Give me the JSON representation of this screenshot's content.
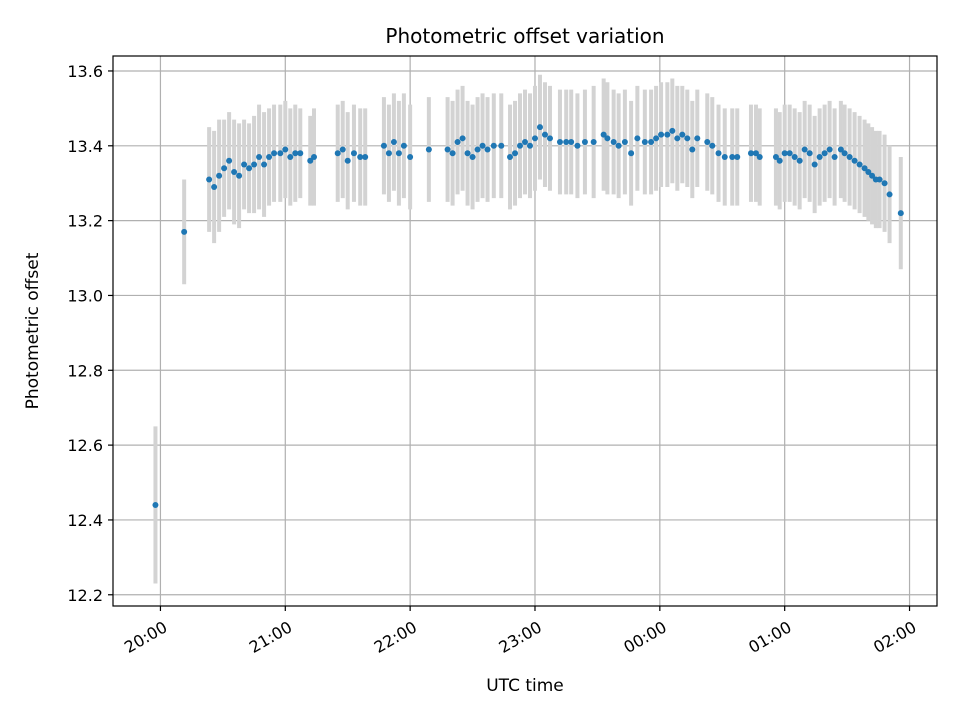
{
  "chart_data": {
    "type": "scatter",
    "title": "Photometric offset variation",
    "xlabel": "UTC time",
    "ylabel": "Photometric offset",
    "x_unit": "hours since 20:00 UTC",
    "xlim": [
      -0.38,
      6.22
    ],
    "ylim": [
      12.17,
      13.64
    ],
    "xticks": [
      {
        "x": 0,
        "label": "20:00"
      },
      {
        "x": 1,
        "label": "21:00"
      },
      {
        "x": 2,
        "label": "22:00"
      },
      {
        "x": 3,
        "label": "23:00"
      },
      {
        "x": 4,
        "label": "00:00"
      },
      {
        "x": 5,
        "label": "01:00"
      },
      {
        "x": 6,
        "label": "02:00"
      }
    ],
    "yticks": [
      {
        "y": 12.2,
        "label": "12.2"
      },
      {
        "y": 12.4,
        "label": "12.4"
      },
      {
        "y": 12.6,
        "label": "12.6"
      },
      {
        "y": 12.8,
        "label": "12.8"
      },
      {
        "y": 13.0,
        "label": "13.0"
      },
      {
        "y": 13.2,
        "label": "13.2"
      },
      {
        "y": 13.4,
        "label": "13.4"
      },
      {
        "y": 13.6,
        "label": "13.6"
      }
    ],
    "grid": true,
    "colors": {
      "marker": "#1f77b4",
      "errorbar": "#d3d3d3",
      "grid": "#b0b0b0"
    },
    "series": [
      {
        "x": [
          -0.04,
          0.19,
          0.39,
          0.43,
          0.47,
          0.51,
          0.55,
          0.59,
          0.63,
          0.67,
          0.71,
          0.75,
          0.79,
          0.83,
          0.87,
          0.91,
          0.96,
          1.0,
          1.04,
          1.08,
          1.12,
          1.2,
          1.23,
          1.42,
          1.46,
          1.5,
          1.55,
          1.6,
          1.64,
          1.79,
          1.83,
          1.87,
          1.91,
          1.95,
          2.0,
          2.15,
          2.3,
          2.34,
          2.38,
          2.42,
          2.46,
          2.5,
          2.54,
          2.58,
          2.62,
          2.67,
          2.73,
          2.8,
          2.84,
          2.88,
          2.92,
          2.96,
          3.0,
          3.04,
          3.08,
          3.12,
          3.2,
          3.25,
          3.29,
          3.34,
          3.4,
          3.47,
          3.55,
          3.58,
          3.63,
          3.67,
          3.72,
          3.77,
          3.82,
          3.88,
          3.93,
          3.97,
          4.01,
          4.06,
          4.1,
          4.14,
          4.18,
          4.22,
          4.26,
          4.3,
          4.38,
          4.42,
          4.47,
          4.52,
          4.58,
          4.62,
          4.73,
          4.77,
          4.8,
          4.93,
          4.96,
          5.0,
          5.04,
          5.08,
          5.12,
          5.16,
          5.2,
          5.24,
          5.28,
          5.32,
          5.36,
          5.4,
          5.45,
          5.48,
          5.52,
          5.56,
          5.6,
          5.64,
          5.67,
          5.7,
          5.73,
          5.76,
          5.8,
          5.84,
          5.93
        ],
        "y": [
          12.44,
          13.17,
          13.31,
          13.29,
          13.32,
          13.34,
          13.36,
          13.33,
          13.32,
          13.35,
          13.34,
          13.35,
          13.37,
          13.35,
          13.37,
          13.38,
          13.38,
          13.39,
          13.37,
          13.38,
          13.38,
          13.36,
          13.37,
          13.38,
          13.39,
          13.36,
          13.38,
          13.37,
          13.37,
          13.4,
          13.38,
          13.41,
          13.38,
          13.4,
          13.37,
          13.39,
          13.39,
          13.38,
          13.41,
          13.42,
          13.38,
          13.37,
          13.39,
          13.4,
          13.39,
          13.4,
          13.4,
          13.37,
          13.38,
          13.4,
          13.41,
          13.4,
          13.42,
          13.45,
          13.43,
          13.42,
          13.41,
          13.41,
          13.41,
          13.4,
          13.41,
          13.41,
          13.43,
          13.42,
          13.41,
          13.4,
          13.41,
          13.38,
          13.42,
          13.41,
          13.41,
          13.42,
          13.43,
          13.43,
          13.44,
          13.42,
          13.43,
          13.42,
          13.39,
          13.42,
          13.41,
          13.4,
          13.38,
          13.37,
          13.37,
          13.37,
          13.38,
          13.38,
          13.37,
          13.37,
          13.36,
          13.38,
          13.38,
          13.37,
          13.36,
          13.39,
          13.38,
          13.35,
          13.37,
          13.38,
          13.39,
          13.37,
          13.39,
          13.38,
          13.37,
          13.36,
          13.35,
          13.34,
          13.33,
          13.32,
          13.31,
          13.31,
          13.3,
          13.27,
          13.22
        ],
        "err": [
          0.21,
          0.14,
          0.14,
          0.15,
          0.15,
          0.13,
          0.13,
          0.14,
          0.14,
          0.12,
          0.12,
          0.13,
          0.14,
          0.14,
          0.13,
          0.13,
          0.13,
          0.13,
          0.13,
          0.13,
          0.12,
          0.12,
          0.13,
          0.13,
          0.13,
          0.13,
          0.13,
          0.13,
          0.13,
          0.13,
          0.13,
          0.13,
          0.14,
          0.14,
          0.14,
          0.14,
          0.14,
          0.14,
          0.14,
          0.14,
          0.14,
          0.14,
          0.14,
          0.14,
          0.14,
          0.14,
          0.14,
          0.14,
          0.14,
          0.14,
          0.14,
          0.14,
          0.14,
          0.14,
          0.14,
          0.14,
          0.14,
          0.14,
          0.14,
          0.14,
          0.14,
          0.15,
          0.15,
          0.15,
          0.14,
          0.14,
          0.14,
          0.14,
          0.14,
          0.14,
          0.14,
          0.14,
          0.14,
          0.14,
          0.14,
          0.14,
          0.13,
          0.13,
          0.13,
          0.13,
          0.13,
          0.13,
          0.13,
          0.13,
          0.13,
          0.13,
          0.13,
          0.13,
          0.13,
          0.13,
          0.13,
          0.13,
          0.13,
          0.13,
          0.13,
          0.13,
          0.13,
          0.13,
          0.13,
          0.13,
          0.13,
          0.13,
          0.13,
          0.13,
          0.13,
          0.13,
          0.13,
          0.13,
          0.13,
          0.13,
          0.13,
          0.13,
          0.13,
          0.13,
          0.15
        ]
      }
    ]
  }
}
